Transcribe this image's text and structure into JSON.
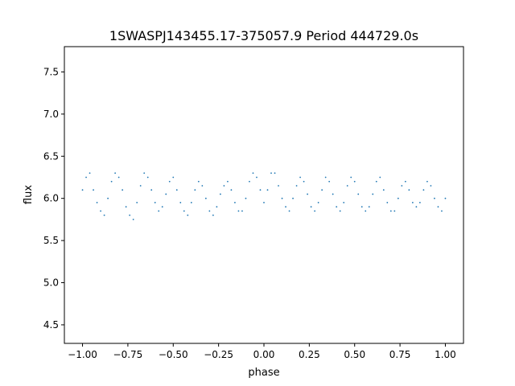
{
  "chart_data": {
    "type": "scatter",
    "title": "1SWASPJ143455.17-375057.9 Period 444729.0s",
    "xlabel": "phase",
    "ylabel": "flux",
    "xlim": [
      -1.1,
      1.1
    ],
    "ylim": [
      4.28,
      7.8
    ],
    "xticks": [
      -1.0,
      -0.75,
      -0.5,
      -0.25,
      0.0,
      0.25,
      0.5,
      0.75,
      1.0
    ],
    "xtick_labels": [
      "−1.00",
      "−0.75",
      "−0.50",
      "−0.25",
      "0.00",
      "0.25",
      "0.50",
      "0.75",
      "1.00"
    ],
    "yticks": [
      4.5,
      5.0,
      5.5,
      6.0,
      6.5,
      7.0,
      7.5
    ],
    "ytick_labels": [
      "4.5",
      "5.0",
      "5.5",
      "6.0",
      "6.5",
      "7.0",
      "7.5"
    ],
    "grid": false,
    "marker_color": "#1f77b4",
    "series": [
      {
        "x": [
          -1.0,
          -0.98,
          -0.96,
          -0.94,
          -0.92,
          -0.9,
          -0.88,
          -0.86,
          -0.84,
          -0.82,
          -0.8,
          -0.78,
          -0.76,
          -0.74,
          -0.72,
          -0.7,
          -0.68,
          -0.66,
          -0.64,
          -0.62,
          -0.6,
          -0.58,
          -0.56,
          -0.54,
          -0.52,
          -0.5,
          -0.48,
          -0.46,
          -0.44,
          -0.42,
          -0.4,
          -0.38,
          -0.36,
          -0.34,
          -0.32,
          -0.3,
          -0.28,
          -0.26,
          -0.24,
          -0.22,
          -0.2,
          -0.18,
          -0.16,
          -0.14,
          -0.12,
          -0.1,
          -0.08,
          -0.06,
          -0.04,
          -0.02,
          0.0,
          0.02,
          0.04,
          0.06,
          0.08,
          0.1,
          0.12,
          0.14,
          0.16,
          0.18,
          0.2,
          0.22,
          0.24,
          0.26,
          0.28,
          0.3,
          0.32,
          0.34,
          0.36,
          0.38,
          0.4,
          0.42,
          0.44,
          0.46,
          0.48,
          0.5,
          0.52,
          0.54,
          0.56,
          0.58,
          0.6,
          0.62,
          0.64,
          0.66,
          0.68,
          0.7,
          0.72,
          0.74,
          0.76,
          0.78,
          0.8,
          0.82,
          0.84,
          0.86,
          0.88,
          0.9,
          0.92,
          0.94,
          0.96,
          0.98,
          1.0
        ],
        "y": [
          6.1,
          6.25,
          6.3,
          6.1,
          5.95,
          5.85,
          5.8,
          6.0,
          6.2,
          6.3,
          6.25,
          6.1,
          5.9,
          5.8,
          5.75,
          5.95,
          6.15,
          6.3,
          6.25,
          6.1,
          5.95,
          5.85,
          5.9,
          6.05,
          6.2,
          6.25,
          6.1,
          5.95,
          5.85,
          5.8,
          5.95,
          6.1,
          6.2,
          6.15,
          6.0,
          5.85,
          5.8,
          5.9,
          6.05,
          6.15,
          6.2,
          6.1,
          5.95,
          5.85,
          5.85,
          6.0,
          6.2,
          6.3,
          6.25,
          6.1,
          5.95,
          6.1,
          6.3,
          6.3,
          6.15,
          6.0,
          5.9,
          5.85,
          6.0,
          6.15,
          6.25,
          6.2,
          6.05,
          5.9,
          5.85,
          5.95,
          6.1,
          6.25,
          6.2,
          6.05,
          5.9,
          5.85,
          5.95,
          6.15,
          6.25,
          6.2,
          6.05,
          5.9,
          5.85,
          5.9,
          6.05,
          6.2,
          6.25,
          6.1,
          5.95,
          5.85,
          5.85,
          6.0,
          6.15,
          6.2,
          6.1,
          5.95,
          5.9,
          5.95,
          6.1,
          6.2,
          6.15,
          6.0,
          5.9,
          5.85,
          6.0
        ]
      }
    ]
  }
}
